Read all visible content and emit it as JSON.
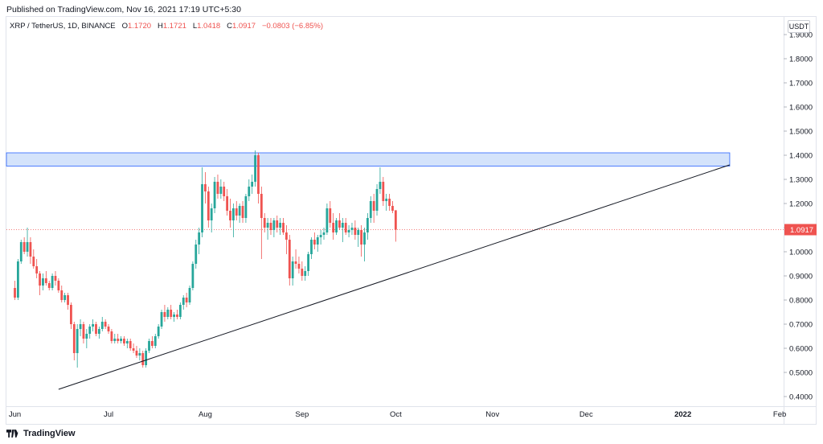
{
  "header": {
    "published": "Published on TradingView.com, Nov 16, 2021 17:19 UTC+5:30"
  },
  "legend": {
    "symbol": "XRP / TetherUS, 1D, BINANCE",
    "o_label": "O",
    "o": "1.1720",
    "h_label": "H",
    "h": "1.1721",
    "l_label": "L",
    "l": "1.0418",
    "c_label": "C",
    "c": "1.0917",
    "change": "−0.0803 (−6.85%)"
  },
  "currency_badge": "USDT",
  "footer": {
    "brand": "TradingView",
    "logo_icon": "tradingview-logo-icon"
  },
  "colors": {
    "up": "#26a69a",
    "down": "#ef5350",
    "zone_fill": "#cfe0fb",
    "zone_stroke": "#2962ff",
    "trendline": "#131722"
  },
  "chart_data": {
    "type": "candlestick",
    "ylim": [
      0.35,
      1.95
    ],
    "y_ticks": [
      "1.9000",
      "1.8000",
      "1.7000",
      "1.6000",
      "1.5000",
      "1.4000",
      "1.3000",
      "1.2000",
      "1.1000",
      "1.0000",
      "0.9000",
      "0.8000",
      "0.7000",
      "0.6000",
      "0.5000",
      "0.4000"
    ],
    "x_ticks": [
      {
        "label": "Jun",
        "day": 0
      },
      {
        "label": "Jul",
        "day": 30
      },
      {
        "label": "Aug",
        "day": 61
      },
      {
        "label": "Sep",
        "day": 92
      },
      {
        "label": "Oct",
        "day": 122
      },
      {
        "label": "Nov",
        "day": 153
      },
      {
        "label": "Dec",
        "day": 183
      },
      {
        "label": "2022",
        "day": 214
      },
      {
        "label": "Feb",
        "day": 245
      }
    ],
    "last_price": "1.0917",
    "resistance_zone": {
      "low": 1.355,
      "high": 1.41,
      "day_start": -3,
      "day_end": 229
    },
    "trendline": {
      "start": {
        "day": 14,
        "price": 0.43
      },
      "end": {
        "day": 229,
        "price": 1.36
      }
    },
    "candles": [
      [
        0.85,
        0.88,
        0.8,
        0.81
      ],
      [
        0.81,
        0.97,
        0.8,
        0.96
      ],
      [
        0.96,
        1.05,
        0.95,
        1.04
      ],
      [
        1.04,
        1.06,
        0.99,
        1.0
      ],
      [
        1.0,
        1.1,
        0.98,
        1.04
      ],
      [
        1.04,
        1.06,
        0.95,
        0.98
      ],
      [
        0.98,
        1.01,
        0.93,
        0.94
      ],
      [
        0.94,
        0.97,
        0.89,
        0.91
      ],
      [
        0.91,
        0.92,
        0.82,
        0.86
      ],
      [
        0.86,
        0.91,
        0.84,
        0.89
      ],
      [
        0.89,
        0.92,
        0.86,
        0.87
      ],
      [
        0.87,
        0.88,
        0.84,
        0.85
      ],
      [
        0.85,
        0.91,
        0.84,
        0.9
      ],
      [
        0.9,
        0.92,
        0.86,
        0.88
      ],
      [
        0.88,
        0.89,
        0.83,
        0.84
      ],
      [
        0.84,
        0.86,
        0.79,
        0.8
      ],
      [
        0.8,
        0.83,
        0.79,
        0.82
      ],
      [
        0.82,
        0.83,
        0.76,
        0.78
      ],
      [
        0.78,
        0.79,
        0.68,
        0.7
      ],
      [
        0.7,
        0.71,
        0.55,
        0.58
      ],
      [
        0.58,
        0.7,
        0.52,
        0.68
      ],
      [
        0.68,
        0.72,
        0.65,
        0.7
      ],
      [
        0.7,
        0.71,
        0.62,
        0.64
      ],
      [
        0.64,
        0.68,
        0.6,
        0.66
      ],
      [
        0.66,
        0.7,
        0.64,
        0.69
      ],
      [
        0.69,
        0.72,
        0.67,
        0.7
      ],
      [
        0.7,
        0.71,
        0.65,
        0.66
      ],
      [
        0.66,
        0.69,
        0.64,
        0.68
      ],
      [
        0.68,
        0.73,
        0.67,
        0.71
      ],
      [
        0.71,
        0.72,
        0.68,
        0.69
      ],
      [
        0.69,
        0.7,
        0.66,
        0.67
      ],
      [
        0.67,
        0.68,
        0.62,
        0.63
      ],
      [
        0.63,
        0.66,
        0.62,
        0.64
      ],
      [
        0.64,
        0.66,
        0.62,
        0.63
      ],
      [
        0.63,
        0.65,
        0.62,
        0.64
      ],
      [
        0.64,
        0.65,
        0.61,
        0.62
      ],
      [
        0.62,
        0.64,
        0.6,
        0.63
      ],
      [
        0.63,
        0.64,
        0.59,
        0.6
      ],
      [
        0.6,
        0.62,
        0.58,
        0.59
      ],
      [
        0.59,
        0.61,
        0.56,
        0.57
      ],
      [
        0.57,
        0.6,
        0.55,
        0.58
      ],
      [
        0.58,
        0.59,
        0.52,
        0.53
      ],
      [
        0.53,
        0.6,
        0.52,
        0.59
      ],
      [
        0.59,
        0.64,
        0.58,
        0.63
      ],
      [
        0.63,
        0.65,
        0.6,
        0.61
      ],
      [
        0.61,
        0.66,
        0.6,
        0.65
      ],
      [
        0.65,
        0.7,
        0.64,
        0.69
      ],
      [
        0.69,
        0.76,
        0.68,
        0.75
      ],
      [
        0.75,
        0.78,
        0.71,
        0.73
      ],
      [
        0.73,
        0.77,
        0.72,
        0.76
      ],
      [
        0.76,
        0.78,
        0.72,
        0.73
      ],
      [
        0.73,
        0.75,
        0.71,
        0.74
      ],
      [
        0.74,
        0.76,
        0.72,
        0.73
      ],
      [
        0.73,
        0.79,
        0.72,
        0.78
      ],
      [
        0.78,
        0.82,
        0.76,
        0.81
      ],
      [
        0.81,
        0.83,
        0.77,
        0.79
      ],
      [
        0.79,
        0.86,
        0.78,
        0.85
      ],
      [
        0.85,
        0.96,
        0.84,
        0.95
      ],
      [
        0.95,
        1.05,
        0.93,
        1.03
      ],
      [
        1.03,
        1.1,
        0.99,
        1.08
      ],
      [
        1.08,
        1.35,
        1.06,
        1.28
      ],
      [
        1.28,
        1.33,
        1.2,
        1.25
      ],
      [
        1.25,
        1.27,
        1.1,
        1.13
      ],
      [
        1.13,
        1.2,
        1.08,
        1.18
      ],
      [
        1.18,
        1.31,
        1.16,
        1.29
      ],
      [
        1.29,
        1.32,
        1.22,
        1.24
      ],
      [
        1.24,
        1.3,
        1.22,
        1.27
      ],
      [
        1.27,
        1.29,
        1.21,
        1.23
      ],
      [
        1.23,
        1.26,
        1.15,
        1.17
      ],
      [
        1.17,
        1.22,
        1.1,
        1.13
      ],
      [
        1.13,
        1.2,
        1.06,
        1.18
      ],
      [
        1.18,
        1.21,
        1.13,
        1.15
      ],
      [
        1.15,
        1.2,
        1.12,
        1.19
      ],
      [
        1.19,
        1.21,
        1.12,
        1.14
      ],
      [
        1.14,
        1.24,
        1.12,
        1.23
      ],
      [
        1.23,
        1.3,
        1.21,
        1.27
      ],
      [
        1.27,
        1.32,
        1.24,
        1.29
      ],
      [
        1.29,
        1.42,
        1.27,
        1.4
      ],
      [
        1.4,
        1.41,
        1.2,
        1.24
      ],
      [
        1.24,
        1.27,
        0.97,
        1.14
      ],
      [
        1.14,
        1.16,
        1.08,
        1.1
      ],
      [
        1.1,
        1.14,
        1.05,
        1.12
      ],
      [
        1.12,
        1.14,
        1.07,
        1.09
      ],
      [
        1.09,
        1.14,
        1.06,
        1.13
      ],
      [
        1.13,
        1.15,
        1.08,
        1.1
      ],
      [
        1.1,
        1.14,
        1.07,
        1.12
      ],
      [
        1.12,
        1.14,
        1.07,
        1.08
      ],
      [
        1.08,
        1.11,
        0.99,
        1.05
      ],
      [
        1.05,
        1.07,
        0.86,
        0.89
      ],
      [
        0.89,
        0.98,
        0.86,
        0.96
      ],
      [
        0.96,
        1.01,
        0.93,
        0.95
      ],
      [
        0.95,
        0.98,
        0.91,
        0.93
      ],
      [
        0.93,
        0.96,
        0.88,
        0.9
      ],
      [
        0.9,
        0.94,
        0.88,
        0.92
      ],
      [
        0.92,
        1.0,
        0.9,
        0.99
      ],
      [
        0.99,
        1.06,
        0.97,
        1.05
      ],
      [
        1.05,
        1.08,
        1.01,
        1.03
      ],
      [
        1.03,
        1.07,
        1.0,
        1.06
      ],
      [
        1.06,
        1.09,
        1.03,
        1.07
      ],
      [
        1.07,
        1.1,
        1.05,
        1.08
      ],
      [
        1.08,
        1.2,
        1.07,
        1.18
      ],
      [
        1.18,
        1.21,
        1.1,
        1.12
      ],
      [
        1.12,
        1.16,
        1.05,
        1.08
      ],
      [
        1.08,
        1.14,
        1.07,
        1.13
      ],
      [
        1.13,
        1.16,
        1.09,
        1.1
      ],
      [
        1.1,
        1.14,
        1.04,
        1.12
      ],
      [
        1.12,
        1.14,
        1.07,
        1.08
      ],
      [
        1.08,
        1.11,
        1.06,
        1.09
      ],
      [
        1.09,
        1.12,
        1.07,
        1.1
      ],
      [
        1.1,
        1.13,
        1.05,
        1.07
      ],
      [
        1.07,
        1.1,
        1.02,
        1.09
      ],
      [
        1.09,
        1.11,
        0.98,
        1.03
      ],
      [
        1.03,
        1.1,
        0.96,
        1.08
      ],
      [
        1.08,
        1.16,
        1.05,
        1.14
      ],
      [
        1.14,
        1.23,
        1.12,
        1.21
      ],
      [
        1.21,
        1.24,
        1.12,
        1.17
      ],
      [
        1.17,
        1.28,
        1.15,
        1.26
      ],
      [
        1.26,
        1.35,
        1.24,
        1.29
      ],
      [
        1.29,
        1.31,
        1.19,
        1.21
      ],
      [
        1.21,
        1.24,
        1.17,
        1.22
      ],
      [
        1.22,
        1.24,
        1.17,
        1.19
      ],
      [
        1.19,
        1.21,
        1.16,
        1.17
      ],
      [
        1.172,
        1.1721,
        1.0418,
        1.0917
      ]
    ]
  }
}
